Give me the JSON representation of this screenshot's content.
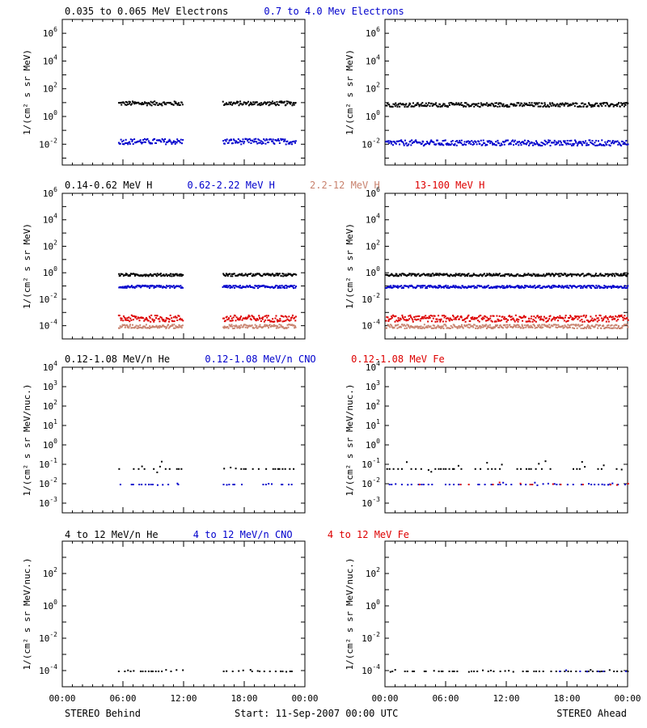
{
  "chart_data": {
    "type": "scatter",
    "footer": {
      "left": "STEREO Behind",
      "center": "Start: 11-Sep-2007 00:00 UTC",
      "right": "STEREO Ahead"
    },
    "x_tick_labels": [
      "00:00",
      "06:00",
      "12:00",
      "18:00",
      "00:00"
    ],
    "x_range_hours": [
      0,
      24
    ],
    "colors": {
      "black": "#000000",
      "blue": "#0000cc",
      "red": "#dd0000",
      "salmon": "#c8826e"
    },
    "rows": [
      {
        "ylabel": "1/(cm² s sr MeV)",
        "yscale": "log",
        "ylim_exp": [
          -3.5,
          7
        ],
        "y_ticks": [
          {
            "base": "10",
            "exp": "6",
            "value_exp": 6
          },
          {
            "base": "10",
            "exp": "4",
            "value_exp": 4
          },
          {
            "base": "10",
            "exp": "2",
            "value_exp": 2
          },
          {
            "base": "10",
            "exp": "0",
            "value_exp": 0
          },
          {
            "base": "10",
            "exp": "-2",
            "value_exp": -2
          }
        ],
        "legend": [
          {
            "text": "0.035 to 0.065 MeV Electrons",
            "color": "black"
          },
          {
            "text": "0.7 to 4.0 Mev Electrons",
            "color": "blue"
          }
        ],
        "series": {
          "behind": [
            {
              "color": "black",
              "y_exp": 1.0,
              "spread": 0.15,
              "segments": [
                [
                  5.5,
                  11.8
                ],
                [
                  15.8,
                  23.0
                ]
              ]
            },
            {
              "color": "blue",
              "y_exp": -1.75,
              "spread": 0.2,
              "segments": [
                [
                  5.5,
                  11.8
                ],
                [
                  15.8,
                  23.0
                ]
              ]
            }
          ],
          "ahead": [
            {
              "color": "black",
              "y_exp": 0.9,
              "spread": 0.15,
              "segments": [
                [
                  0,
                  24
                ]
              ]
            },
            {
              "color": "blue",
              "y_exp": -1.85,
              "spread": 0.2,
              "segments": [
                [
                  0,
                  24
                ]
              ]
            }
          ]
        }
      },
      {
        "ylabel": "1/(cm² s sr MeV)",
        "yscale": "log",
        "ylim_exp": [
          -5,
          6
        ],
        "y_ticks": [
          {
            "base": "10",
            "exp": "6",
            "value_exp": 6
          },
          {
            "base": "10",
            "exp": "4",
            "value_exp": 4
          },
          {
            "base": "10",
            "exp": "2",
            "value_exp": 2
          },
          {
            "base": "10",
            "exp": "0",
            "value_exp": 0
          },
          {
            "base": "10",
            "exp": "-2",
            "value_exp": -2
          },
          {
            "base": "10",
            "exp": "-4",
            "value_exp": -4
          }
        ],
        "legend": [
          {
            "text": "0.14-0.62 MeV H",
            "color": "black"
          },
          {
            "text": "0.62-2.22 MeV H",
            "color": "blue"
          },
          {
            "text": "2.2-12 MeV H",
            "color": "salmon"
          },
          {
            "text": "13-100 MeV H",
            "color": "red"
          }
        ],
        "series": {
          "behind": [
            {
              "color": "black",
              "y_exp": -0.1,
              "spread": 0.1,
              "segments": [
                [
                  5.5,
                  11.8
                ],
                [
                  15.8,
                  23.0
                ]
              ]
            },
            {
              "color": "blue",
              "y_exp": -1.0,
              "spread": 0.1,
              "segments": [
                [
                  5.5,
                  11.8
                ],
                [
                  15.8,
                  23.0
                ]
              ]
            },
            {
              "color": "red",
              "y_exp": -3.4,
              "spread": 0.25,
              "segments": [
                [
                  5.5,
                  11.8
                ],
                [
                  15.8,
                  23.0
                ]
              ]
            },
            {
              "color": "salmon",
              "y_exp": -4.0,
              "spread": 0.15,
              "segments": [
                [
                  5.5,
                  11.8
                ],
                [
                  15.8,
                  23.0
                ]
              ]
            }
          ],
          "ahead": [
            {
              "color": "black",
              "y_exp": -0.1,
              "spread": 0.1,
              "segments": [
                [
                  0,
                  24
                ]
              ]
            },
            {
              "color": "blue",
              "y_exp": -1.0,
              "spread": 0.1,
              "segments": [
                [
                  0,
                  24
                ]
              ]
            },
            {
              "color": "red",
              "y_exp": -3.4,
              "spread": 0.25,
              "segments": [
                [
                  0,
                  24
                ]
              ]
            },
            {
              "color": "salmon",
              "y_exp": -4.0,
              "spread": 0.15,
              "segments": [
                [
                  0,
                  24
                ]
              ]
            }
          ]
        }
      },
      {
        "ylabel": "1/(cm² s sr MeV/nuc.)",
        "yscale": "log",
        "ylim_exp": [
          -3.5,
          4
        ],
        "y_ticks": [
          {
            "base": "10",
            "exp": "4",
            "value_exp": 4
          },
          {
            "base": "10",
            "exp": "3",
            "value_exp": 3
          },
          {
            "base": "10",
            "exp": "2",
            "value_exp": 2
          },
          {
            "base": "10",
            "exp": "1",
            "value_exp": 1
          },
          {
            "base": "10",
            "exp": "0",
            "value_exp": 0
          },
          {
            "base": "10",
            "exp": "-1",
            "value_exp": -1
          },
          {
            "base": "10",
            "exp": "-2",
            "value_exp": -2
          },
          {
            "base": "10",
            "exp": "-3",
            "value_exp": -3
          }
        ],
        "legend": [
          {
            "text": "0.12-1.08 MeV/n He",
            "color": "black"
          },
          {
            "text": "0.12-1.08 MeV/n CNO",
            "color": "blue"
          },
          {
            "text": "0.12-1.08 MeV Fe",
            "color": "red"
          }
        ],
        "series": {
          "behind": [
            {
              "color": "black",
              "y_exp": -1.2,
              "spread": 0.2,
              "segments": [
                [
                  5.5,
                  11.8
                ],
                [
                  15.8,
                  23.0
                ]
              ],
              "sparse": true
            },
            {
              "color": "blue",
              "y_exp": -2.0,
              "spread": 0.05,
              "segments": [
                [
                  5.5,
                  11.8
                ],
                [
                  15.8,
                  23.0
                ]
              ],
              "sparse": true
            }
          ],
          "ahead": [
            {
              "color": "black",
              "y_exp": -1.2,
              "spread": 0.2,
              "segments": [
                [
                  0,
                  24
                ]
              ],
              "sparse": true
            },
            {
              "color": "blue",
              "y_exp": -2.0,
              "spread": 0.05,
              "segments": [
                [
                  0,
                  24
                ]
              ],
              "sparse": true
            },
            {
              "color": "red",
              "y_exp": -2.0,
              "spread": 0.05,
              "segments": [
                [
                  1,
                  24
                ]
              ],
              "sparse": true,
              "rare": true
            }
          ]
        }
      },
      {
        "ylabel": "1/(cm² s sr MeV/nuc.)",
        "yscale": "log",
        "ylim_exp": [
          -5,
          4
        ],
        "y_ticks": [
          {
            "base": "10",
            "exp": "2",
            "value_exp": 2
          },
          {
            "base": "10",
            "exp": "0",
            "value_exp": 0
          },
          {
            "base": "10",
            "exp": "-2",
            "value_exp": -2
          },
          {
            "base": "10",
            "exp": "-4",
            "value_exp": -4
          }
        ],
        "legend": [
          {
            "text": "4 to 12 MeV/n He",
            "color": "black"
          },
          {
            "text": "4 to 12 MeV/n CNO",
            "color": "blue"
          },
          {
            "text": "4 to 12 MeV Fe",
            "color": "red"
          }
        ],
        "series": {
          "behind": [
            {
              "color": "black",
              "y_exp": -4.0,
              "spread": 0.05,
              "segments": [
                [
                  5.5,
                  11.8
                ],
                [
                  15.8,
                  23.0
                ]
              ],
              "sparse": true
            }
          ],
          "ahead": [
            {
              "color": "black",
              "y_exp": -4.0,
              "spread": 0.05,
              "segments": [
                [
                  0,
                  24
                ]
              ],
              "sparse": true
            },
            {
              "color": "blue",
              "y_exp": -4.0,
              "spread": 0.05,
              "segments": [
                [
                  16,
                  24
                ]
              ],
              "sparse": true,
              "rare": true
            }
          ]
        }
      }
    ]
  }
}
